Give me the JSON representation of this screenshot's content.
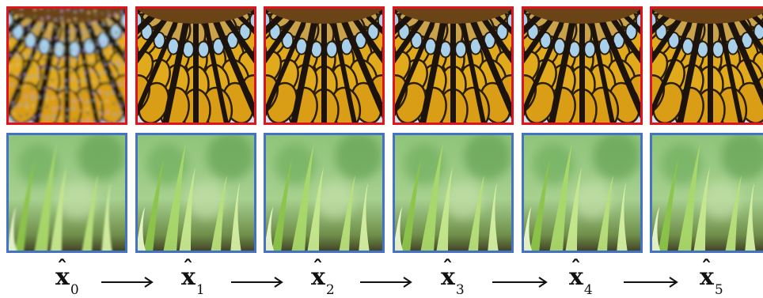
{
  "steps": [
    {
      "symbol": "x",
      "subscript": "0"
    },
    {
      "symbol": "x",
      "subscript": "1"
    },
    {
      "symbol": "x",
      "subscript": "2"
    },
    {
      "symbol": "x",
      "subscript": "3"
    },
    {
      "symbol": "x",
      "subscript": "4"
    },
    {
      "symbol": "x",
      "subscript": "5"
    }
  ],
  "rows": [
    {
      "name": "stained-glass-crop",
      "border_color": "#e0141c"
    },
    {
      "name": "grass-crop",
      "border_color": "#4472c4"
    }
  ],
  "arrow_icon": "right-arrow-icon",
  "hat_icon": "circumflex"
}
